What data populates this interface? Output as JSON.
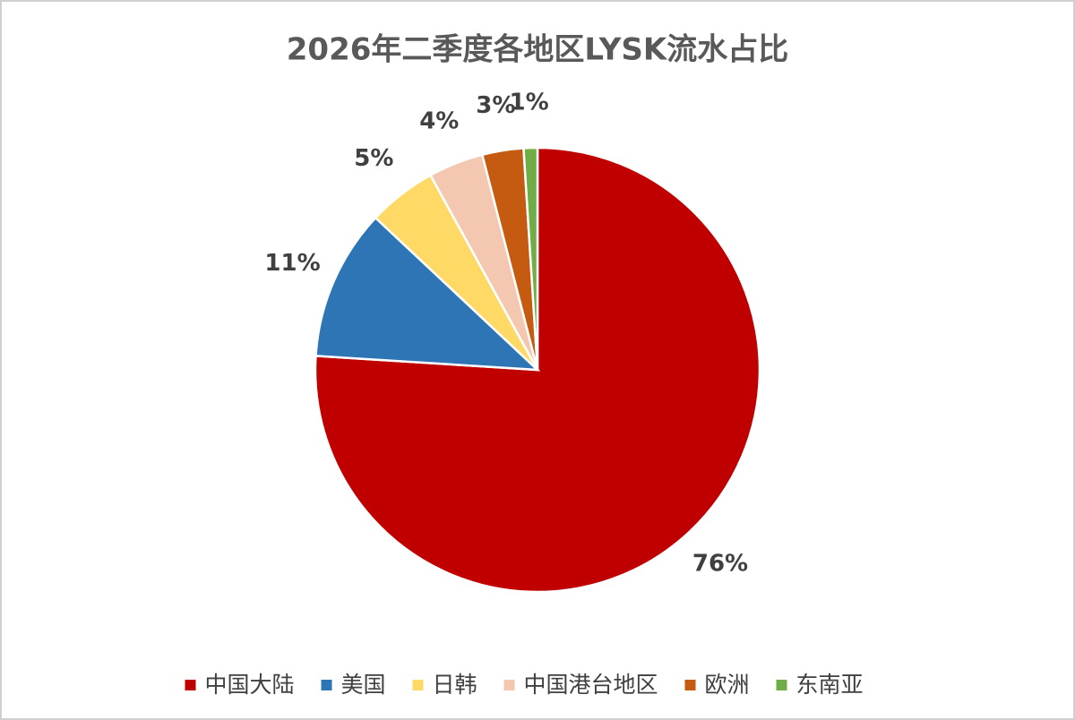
{
  "chart_data": {
    "type": "pie",
    "title": "2026年二季度各地区LYSK流水占比",
    "categories": [
      "中国大陆",
      "美国",
      "日韩",
      "中国港台地区",
      "欧洲",
      "东南亚"
    ],
    "values": [
      76,
      11,
      5,
      4,
      3,
      1
    ],
    "value_labels": [
      "76%",
      "11%",
      "5%",
      "4%",
      "3%",
      "1%"
    ],
    "colors": [
      "#c00000",
      "#2e75b6",
      "#ffd966",
      "#f4c7b0",
      "#c55a11",
      "#70ad47"
    ],
    "legend": "bottom"
  }
}
